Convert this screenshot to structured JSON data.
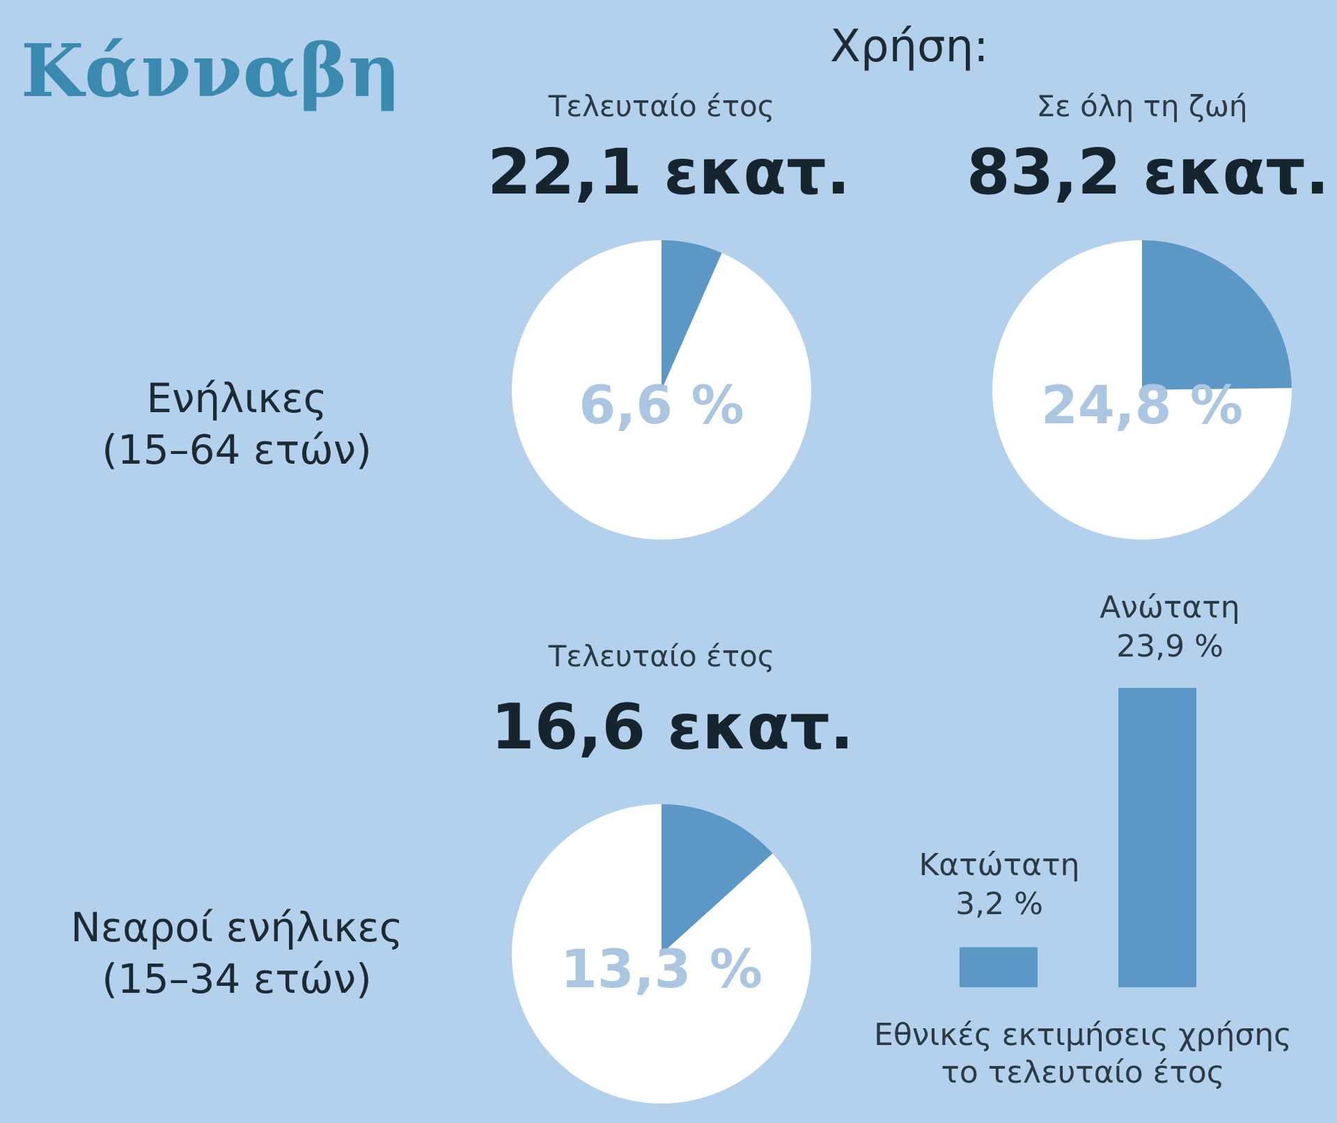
{
  "title": "Κάνναβη",
  "usage_label": "Χρήση:",
  "adults": {
    "label_line1": "Ενήλικες",
    "label_line2": "(15–64 ετών)",
    "last_year_label": "Τελευταίο έτος",
    "last_year_value": "22,1 εκατ.",
    "lifetime_label": "Σε όλη τη ζωή",
    "lifetime_value": "83,2 εκατ."
  },
  "young_adults": {
    "label_line1": "Νεαροί ενήλικες",
    "label_line2": "(15–34 ετών)",
    "last_year_label": "Τελευταίο έτος",
    "last_year_value": "16,6 εκατ."
  },
  "national": {
    "min_label": "Κατώτατη",
    "max_label": "Ανώτατη",
    "footnote_line1": "Εθνικές εκτιμήσεις χρήσης",
    "footnote_line2": "το τελευταίο έτος"
  },
  "colors": {
    "background": "#b3d1ec",
    "slice": "#5b98c6",
    "pie_bg": "#ffffff",
    "pct_text": "#aac6e0",
    "bar": "#5b98c6",
    "title": "#3a8ab0"
  },
  "chart_data": [
    {
      "type": "pie",
      "label": "6,6 %",
      "value": 6.6,
      "slices": [
        {
          "value": 6.6
        },
        {
          "value": 93.4
        }
      ]
    },
    {
      "type": "pie",
      "label": "24,8 %",
      "value": 24.8,
      "slices": [
        {
          "value": 24.8
        },
        {
          "value": 75.2
        }
      ]
    },
    {
      "type": "pie",
      "label": "13,3 %",
      "value": 13.3,
      "slices": [
        {
          "value": 13.3
        },
        {
          "value": 86.7
        }
      ]
    },
    {
      "type": "bar",
      "categories": [
        "Κατώτατη",
        "Ανώτατη"
      ],
      "values": [
        3.2,
        23.9
      ],
      "value_labels": [
        "3,2 %",
        "23,9 %"
      ]
    }
  ]
}
